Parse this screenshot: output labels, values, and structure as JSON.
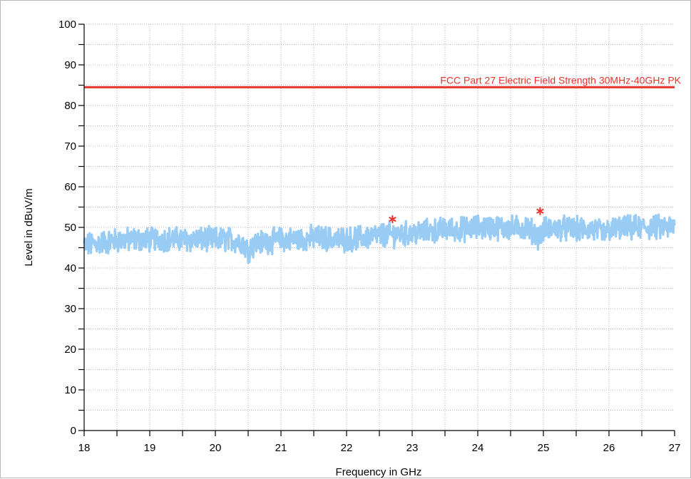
{
  "chart_data": {
    "type": "line",
    "title": "",
    "xlabel": "Frequency in GHz",
    "ylabel": "Level in dBuV/m",
    "xlim": [
      18,
      27
    ],
    "ylim": [
      0,
      100
    ],
    "x_ticks": [
      18,
      19,
      20,
      21,
      22,
      23,
      24,
      25,
      26,
      27
    ],
    "y_ticks": [
      0,
      10,
      20,
      30,
      40,
      50,
      60,
      70,
      80,
      90,
      100
    ],
    "grid": true,
    "limit_line": {
      "label": "FCC Part 27 Electric Field Strength 30MHz-40GHz PK",
      "value": 84.5,
      "color": "#e8332e"
    },
    "series": [
      {
        "color": "#99ccf5",
        "x": [
          18.0,
          18.25,
          18.5,
          18.75,
          19.0,
          19.25,
          19.5,
          19.75,
          20.0,
          20.25,
          20.4,
          20.5,
          20.6,
          20.75,
          21.0,
          21.25,
          21.5,
          21.75,
          22.0,
          22.25,
          22.5,
          22.75,
          23.0,
          23.25,
          23.5,
          23.75,
          24.0,
          24.25,
          24.5,
          24.75,
          24.95,
          25.0,
          25.25,
          25.5,
          25.75,
          25.95,
          26.0,
          26.25,
          26.5,
          26.75,
          27.0
        ],
        "y": [
          45.5,
          46.2,
          46.8,
          47.0,
          47.0,
          47.2,
          47.0,
          47.0,
          47.0,
          47.0,
          46.5,
          44.5,
          46.0,
          46.5,
          47.0,
          47.0,
          47.5,
          47.2,
          47.0,
          47.5,
          48.0,
          48.3,
          48.5,
          49.0,
          49.5,
          49.5,
          50.0,
          50.0,
          49.8,
          50.0,
          47.5,
          49.5,
          49.8,
          49.5,
          49.5,
          48.5,
          49.5,
          49.8,
          50.0,
          50.0,
          50.0
        ]
      }
    ],
    "markers": [
      {
        "x": 22.7,
        "y": 52.0,
        "color": "#e8332e"
      },
      {
        "x": 24.95,
        "y": 54.0,
        "color": "#e8332e"
      }
    ]
  }
}
